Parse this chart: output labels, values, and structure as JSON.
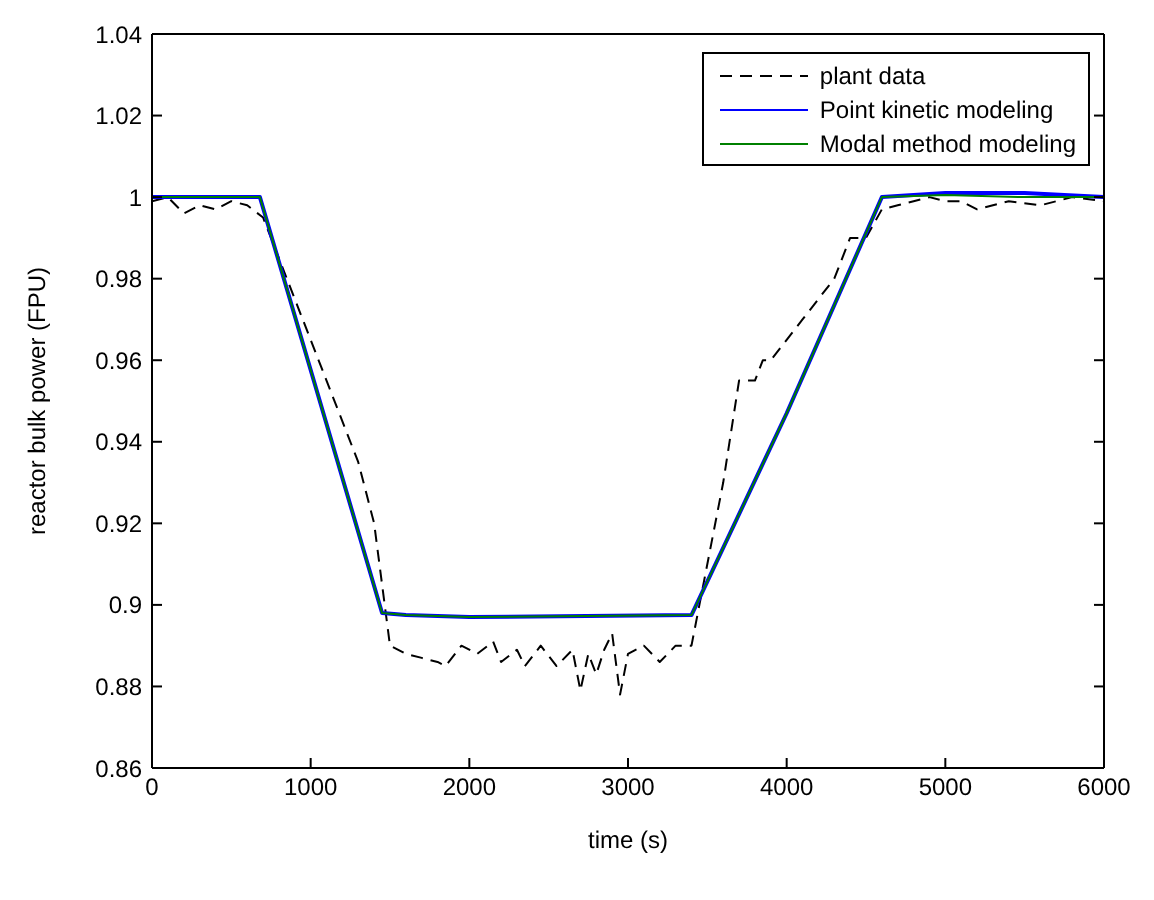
{
  "chart_data": {
    "type": "line",
    "xlabel": "time (s)",
    "ylabel": "reactor bulk power (FPU)",
    "xlim": [
      0,
      6000
    ],
    "xticks": [
      0,
      1000,
      2000,
      3000,
      4000,
      5000,
      6000
    ],
    "ylim": [
      0.86,
      1.04
    ],
    "yticks": [
      0.86,
      0.88,
      0.9,
      0.92,
      0.94,
      0.96,
      0.98,
      1,
      1.02,
      1.04
    ],
    "legend": "top right",
    "marker": "none",
    "series": [
      {
        "name": "plant data",
        "color": "#000000",
        "line_style": "dashed",
        "x": [
          0,
          100,
          200,
          300,
          400,
          500,
          600,
          700,
          800,
          900,
          1000,
          1100,
          1200,
          1300,
          1400,
          1450,
          1500,
          1600,
          1700,
          1800,
          1850,
          1950,
          2050,
          2150,
          2200,
          2300,
          2350,
          2450,
          2550,
          2650,
          2700,
          2750,
          2800,
          2850,
          2900,
          2950,
          3000,
          3100,
          3200,
          3300,
          3400,
          3450,
          3600,
          3700,
          3800,
          3850,
          3900,
          4000,
          4100,
          4300,
          4400,
          4500,
          4600,
          4700,
          4800,
          4900,
          5000,
          5100,
          5200,
          5300,
          5400,
          5600,
          5800,
          6000
        ],
        "values": [
          0.999,
          1.0,
          0.996,
          0.998,
          0.997,
          0.999,
          0.998,
          0.995,
          0.985,
          0.975,
          0.965,
          0.955,
          0.945,
          0.935,
          0.92,
          0.905,
          0.89,
          0.888,
          0.887,
          0.886,
          0.885,
          0.89,
          0.888,
          0.891,
          0.886,
          0.889,
          0.885,
          0.89,
          0.885,
          0.889,
          0.879,
          0.888,
          0.883,
          0.889,
          0.893,
          0.878,
          0.888,
          0.89,
          0.886,
          0.89,
          0.89,
          0.9,
          0.93,
          0.955,
          0.955,
          0.96,
          0.96,
          0.965,
          0.97,
          0.98,
          0.99,
          0.99,
          0.997,
          0.998,
          0.999,
          1.0,
          0.999,
          0.999,
          0.997,
          0.998,
          0.999,
          0.998,
          1.0,
          0.999
        ]
      },
      {
        "name": "Point kinetic modeling",
        "color": "#0000ff",
        "line_style": "solid",
        "x": [
          0,
          680,
          1450,
          1600,
          2000,
          3400,
          4000,
          4600,
          5000,
          5500,
          6000
        ],
        "values": [
          1,
          1,
          0.898,
          0.8975,
          0.897,
          0.8975,
          0.947,
          1.0,
          1.001,
          1.001,
          1.0
        ]
      },
      {
        "name": "Modal method modeling",
        "color": "#008000",
        "line_style": "solid",
        "x": [
          0,
          680,
          1450,
          1600,
          2000,
          3400,
          4000,
          4600,
          5000,
          5500,
          6000
        ],
        "values": [
          1,
          1,
          0.898,
          0.8975,
          0.897,
          0.8975,
          0.947,
          1.0,
          1.0005,
          1.0,
          1.0
        ]
      }
    ]
  }
}
